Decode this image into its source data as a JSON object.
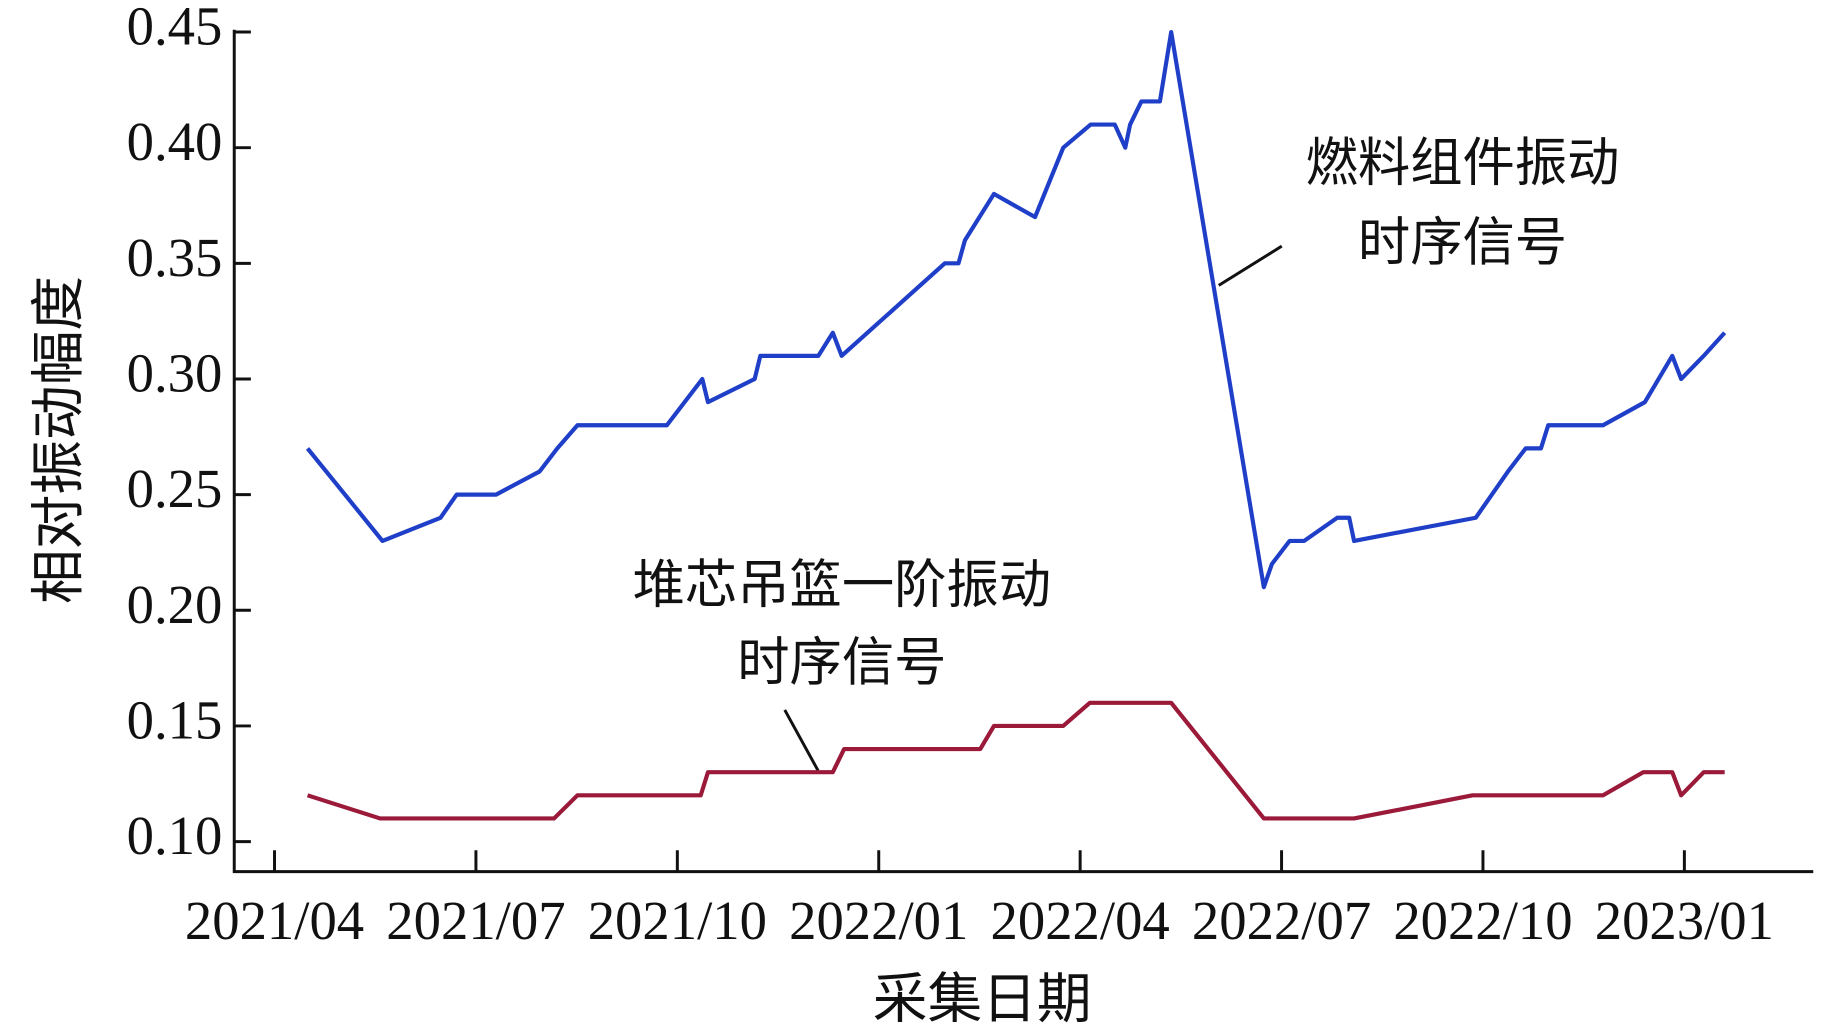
{
  "chart_data": {
    "type": "line",
    "x_label": "采集日期",
    "y_label": "相对振动幅度",
    "xlim": [
      2021.2,
      2023.16
    ],
    "ylim": [
      0.087,
      0.451
    ],
    "xticks": [
      {
        "value": 2021.25,
        "label": "2021/04"
      },
      {
        "value": 2021.5,
        "label": "2021/07"
      },
      {
        "value": 2021.75,
        "label": "2021/10"
      },
      {
        "value": 2022.0,
        "label": "2022/01"
      },
      {
        "value": 2022.25,
        "label": "2022/04"
      },
      {
        "value": 2022.5,
        "label": "2022/07"
      },
      {
        "value": 2022.75,
        "label": "2022/10"
      },
      {
        "value": 2023.0,
        "label": "2023/01"
      }
    ],
    "yticks": [
      {
        "value": 0.1,
        "label": "0.10"
      },
      0.15,
      {
        "value": 0.2,
        "label": "0.20"
      },
      0.25,
      {
        "value": 0.3,
        "label": "0.30"
      },
      0.35,
      {
        "value": 0.4,
        "label": "0.40"
      },
      0.45
    ],
    "series": [
      {
        "color": "#1f3fc8",
        "x": [
          2021.291,
          2021.384,
          2021.456,
          2021.476,
          2021.525,
          2021.579,
          2021.601,
          2021.626,
          2021.737,
          2021.781,
          2021.788,
          2021.846,
          2021.853,
          2021.925,
          2021.943,
          2021.954,
          2022.05,
          2022.082,
          2022.099,
          2022.107,
          2022.143,
          2022.194,
          2022.229,
          2022.263,
          2022.293,
          2022.306,
          2022.312,
          2022.326,
          2022.349,
          2022.363,
          2022.478,
          2022.488,
          2022.51,
          2022.528,
          2022.569,
          2022.584,
          2022.59,
          2022.741,
          2022.781,
          2022.803,
          2022.822,
          2022.831,
          2022.899,
          2022.951,
          2022.985,
          2022.996,
          2023.024,
          2023.05
        ],
        "values": [
          0.27,
          0.23,
          0.24,
          0.25,
          0.25,
          0.26,
          0.27,
          0.28,
          0.28,
          0.3,
          0.29,
          0.3,
          0.31,
          0.31,
          0.32,
          0.31,
          0.34,
          0.35,
          0.35,
          0.36,
          0.38,
          0.37,
          0.4,
          0.41,
          0.41,
          0.4,
          0.41,
          0.42,
          0.42,
          0.45,
          0.21,
          0.22,
          0.23,
          0.23,
          0.24,
          0.24,
          0.23,
          0.24,
          0.26,
          0.27,
          0.27,
          0.28,
          0.28,
          0.29,
          0.31,
          0.3,
          0.31,
          0.32
        ]
      },
      {
        "color": "#9b1a3a",
        "x": [
          2021.291,
          2021.381,
          2021.597,
          2021.626,
          2021.779,
          2021.788,
          2021.943,
          2021.957,
          2022.126,
          2022.143,
          2022.229,
          2022.262,
          2022.363,
          2022.478,
          2022.59,
          2022.737,
          2022.899,
          2022.949,
          2022.985,
          2022.996,
          2023.024,
          2023.05
        ],
        "values": [
          0.12,
          0.11,
          0.11,
          0.12,
          0.12,
          0.13,
          0.13,
          0.14,
          0.14,
          0.15,
          0.15,
          0.16,
          0.16,
          0.11,
          0.11,
          0.12,
          0.12,
          0.13,
          0.13,
          0.12,
          0.13,
          0.13
        ]
      }
    ],
    "annotations": [
      {
        "text": [
          "燃料组件振动",
          "时序信号"
        ]
      },
      {
        "text": [
          "堆芯吊篮一阶振动",
          "时序信号"
        ]
      }
    ]
  }
}
